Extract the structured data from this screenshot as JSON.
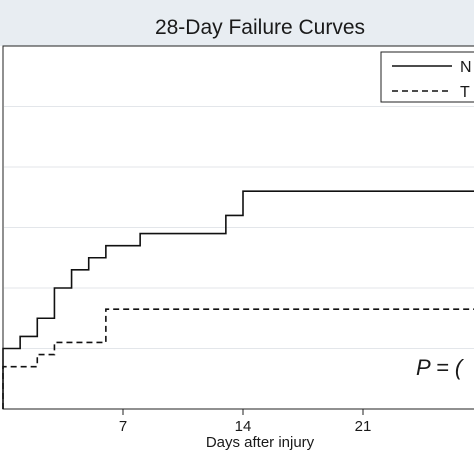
{
  "chart_data": {
    "type": "line",
    "title": "28-Day Failure Curves",
    "xlabel": "Days after injury",
    "ylabel": "",
    "xlim": [
      0,
      28
    ],
    "ylim": [
      0,
      0.6
    ],
    "xticks": [
      7,
      14,
      21
    ],
    "xtick_labels": [
      "7",
      "14",
      "21"
    ],
    "grid": "horizontal",
    "legend_position": "top-right",
    "legend_entries": [
      {
        "label": "N",
        "style": "solid"
      },
      {
        "label": "T",
        "style": "dashed"
      }
    ],
    "annotation": "P = (",
    "series": [
      {
        "label": "N",
        "style": "solid",
        "step_x": [
          0,
          1,
          2,
          3,
          4,
          5,
          6,
          8,
          13,
          14
        ],
        "step_y": [
          0.1,
          0.12,
          0.15,
          0.2,
          0.23,
          0.25,
          0.27,
          0.29,
          0.32,
          0.36
        ]
      },
      {
        "label": "T",
        "style": "dashed",
        "step_x": [
          0,
          2,
          3,
          6
        ],
        "step_y": [
          0.07,
          0.09,
          0.11,
          0.165
        ]
      }
    ]
  },
  "colors": {
    "title_band": "#e8edf2",
    "title_text": "#1f3a52",
    "plot_bg": "#ffffff",
    "grid": "#e3e6ea",
    "line": "#111111"
  }
}
